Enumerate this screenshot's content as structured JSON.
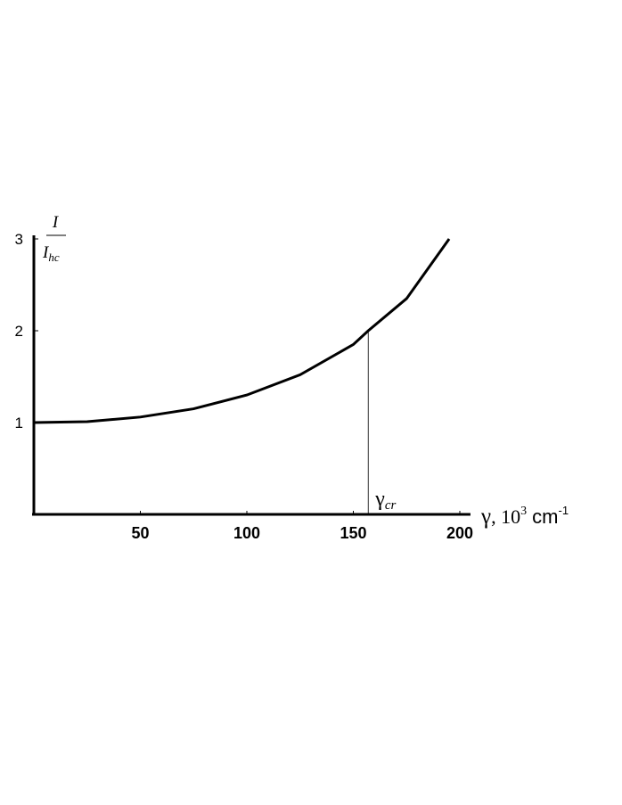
{
  "chart_data": {
    "type": "line",
    "x": [
      0,
      25,
      50,
      75,
      100,
      125,
      150,
      157,
      175,
      195
    ],
    "series": [
      {
        "color": "#000000",
        "values": [
          1,
          1.01,
          1.06,
          1.15,
          1.3,
          1.52,
          1.85,
          2.0,
          2.35,
          3.0
        ]
      }
    ],
    "xlim": [
      0,
      205
    ],
    "xticks": [
      50,
      100,
      150,
      200
    ],
    "ylim": [
      0,
      3
    ],
    "yticks": [
      1,
      2,
      3
    ],
    "y_label": {
      "numerator": "I",
      "denominator": "I",
      "denominator_sub": "hc"
    },
    "x_label": {
      "symbol": "γ",
      "text": ", 10",
      "sup": "3",
      "unit": " cm",
      "unit_sup": "-1"
    },
    "critical": {
      "x": 157,
      "y": 2.0,
      "symbol": "γ",
      "sub": "cr"
    }
  }
}
